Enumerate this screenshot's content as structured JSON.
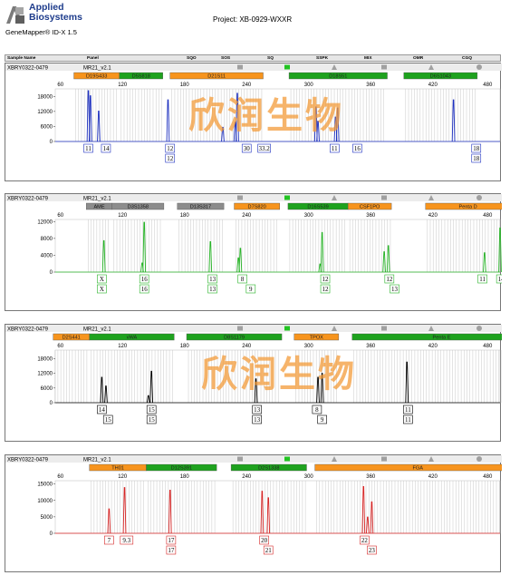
{
  "header": {
    "logo_line1": "Applied",
    "logo_line2": "Biosystems",
    "product": "GeneMapper® ID-X  1.5",
    "project": "Project: XB-0929-WXXR"
  },
  "columns": [
    "Sample Name",
    "Panel",
    "SQO",
    "SOS",
    "SQ",
    "SSPK",
    "MIX",
    "OMR",
    "CGQ"
  ],
  "watermark": "欣润生物",
  "colors": {
    "blue": "#1c2fbf",
    "green": "#27b327",
    "black": "#000000",
    "red": "#d62525",
    "marker_orange": "#f7941d",
    "marker_green": "#1ea21e",
    "marker_gray": "#8c8c8c"
  },
  "panels": [
    {
      "sample": "XBRY0322-0479",
      "panel": "MR21_v2.1",
      "color": "#1c2fbf",
      "x_ticks": [
        60,
        120,
        180,
        240,
        300,
        360,
        420,
        480
      ],
      "y_ticks": [
        18000,
        12000,
        6000,
        0
      ],
      "y_max": 21000,
      "markers": [
        {
          "name": "D19S433",
          "x0": 73,
          "x1": 117,
          "c": "o"
        },
        {
          "name": "D5S818",
          "x0": 117,
          "x1": 159,
          "c": "g"
        },
        {
          "name": "D21S11",
          "x0": 166,
          "x1": 256,
          "c": "o"
        },
        {
          "name": "D18S51",
          "x0": 281,
          "x1": 376,
          "c": "g"
        },
        {
          "name": "D6S1043",
          "x0": 392,
          "x1": 463,
          "c": "g"
        }
      ],
      "peaks": [
        {
          "x": 87,
          "h": 1.0
        },
        {
          "x": 89,
          "h": 0.9
        },
        {
          "x": 97,
          "h": 0.6
        },
        {
          "x": 164,
          "h": 0.82
        },
        {
          "x": 217,
          "h": 0.28
        },
        {
          "x": 229,
          "h": 0.38
        },
        {
          "x": 231,
          "h": 0.95
        },
        {
          "x": 307,
          "h": 0.68
        },
        {
          "x": 309,
          "h": 0.4
        },
        {
          "x": 326,
          "h": 0.48
        },
        {
          "x": 328,
          "h": 0.66
        },
        {
          "x": 440,
          "h": 0.82
        }
      ],
      "labels": [
        {
          "row": [
            {
              "x": 87,
              "t": "11"
            },
            {
              "x": 104,
              "t": "14"
            },
            {
              "x": 166,
              "t": "12"
            },
            {
              "x": 240,
              "t": "30"
            },
            {
              "x": 257,
              "t": "33.2"
            },
            {
              "x": 325,
              "t": "11"
            },
            {
              "x": 347,
              "t": "16"
            },
            {
              "x": 462,
              "t": "18"
            }
          ]
        },
        {
          "row": [
            {
              "x": 166,
              "t": "12"
            },
            {
              "x": 462,
              "t": "18"
            }
          ]
        }
      ]
    },
    {
      "sample": "XBRY0322-0479",
      "panel": "MR21_v2.1",
      "color": "#27b327",
      "x_ticks": [
        60,
        120,
        180,
        240,
        300,
        360,
        420,
        480
      ],
      "y_ticks": [
        12000,
        8000,
        4000,
        0
      ],
      "y_max": 12500,
      "markers": [
        {
          "name": "AME",
          "x0": 85,
          "x1": 110,
          "c": "y"
        },
        {
          "name": "D3S1358",
          "x0": 110,
          "x1": 160,
          "c": "y"
        },
        {
          "name": "D13S317",
          "x0": 173,
          "x1": 218,
          "c": "y"
        },
        {
          "name": "D7S820",
          "x0": 228,
          "x1": 272,
          "c": "o"
        },
        {
          "name": "D16S539",
          "x0": 280,
          "x1": 338,
          "c": "g"
        },
        {
          "name": "CSF1PO",
          "x0": 338,
          "x1": 380,
          "c": "o"
        },
        {
          "name": "Penta D",
          "x0": 413,
          "x1": 495,
          "c": "o"
        }
      ],
      "peaks": [
        {
          "x": 102,
          "h": 0.62
        },
        {
          "x": 139,
          "h": 0.18
        },
        {
          "x": 141,
          "h": 0.98
        },
        {
          "x": 205,
          "h": 0.6
        },
        {
          "x": 232,
          "h": 0.28
        },
        {
          "x": 234,
          "h": 0.47
        },
        {
          "x": 311,
          "h": 0.16
        },
        {
          "x": 313,
          "h": 0.78
        },
        {
          "x": 373,
          "h": 0.4
        },
        {
          "x": 377,
          "h": 0.52
        },
        {
          "x": 470,
          "h": 0.38
        },
        {
          "x": 485,
          "h": 0.87
        }
      ],
      "labels": [
        {
          "row": [
            {
              "x": 100,
              "t": "X"
            },
            {
              "x": 141,
              "t": "16"
            },
            {
              "x": 207,
              "t": "13"
            },
            {
              "x": 236,
              "t": "8"
            },
            {
              "x": 316,
              "t": "12"
            },
            {
              "x": 378,
              "t": "12"
            },
            {
              "x": 468,
              "t": "11"
            },
            {
              "x": 486,
              "t": "14"
            }
          ]
        },
        {
          "row": [
            {
              "x": 100,
              "t": "X"
            },
            {
              "x": 141,
              "t": "16"
            },
            {
              "x": 207,
              "t": "13"
            },
            {
              "x": 244,
              "t": "9"
            },
            {
              "x": 316,
              "t": "12"
            },
            {
              "x": 383,
              "t": "13"
            }
          ]
        }
      ]
    },
    {
      "sample": "XBRY0322-0479",
      "panel": "MR21_v2.1",
      "color": "#000000",
      "x_ticks": [
        60,
        120,
        180,
        240,
        300,
        360,
        420,
        480
      ],
      "y_ticks": [
        18000,
        12000,
        6000,
        0
      ],
      "y_max": 21500,
      "markers": [
        {
          "name": "D2S441",
          "x0": 53,
          "x1": 88,
          "c": "o"
        },
        {
          "name": "vWA",
          "x0": 88,
          "x1": 170,
          "c": "g"
        },
        {
          "name": "D8S1179",
          "x0": 182,
          "x1": 274,
          "c": "g"
        },
        {
          "name": "TPOX",
          "x0": 286,
          "x1": 329,
          "c": "o"
        },
        {
          "name": "Penta E",
          "x0": 342,
          "x1": 515,
          "c": "g"
        }
      ],
      "peaks": [
        {
          "x": 100,
          "h": 0.5
        },
        {
          "x": 104,
          "h": 0.33
        },
        {
          "x": 145,
          "h": 0.14
        },
        {
          "x": 148,
          "h": 0.62
        },
        {
          "x": 249,
          "h": 0.47
        },
        {
          "x": 309,
          "h": 0.5
        },
        {
          "x": 313,
          "h": 0.58
        },
        {
          "x": 395,
          "h": 0.8
        }
      ],
      "labels": [
        {
          "row": [
            {
              "x": 100,
              "t": "14"
            },
            {
              "x": 148,
              "t": "15"
            },
            {
              "x": 250,
              "t": "13"
            },
            {
              "x": 308,
              "t": "8"
            },
            {
              "x": 396,
              "t": "11"
            }
          ]
        },
        {
          "row": [
            {
              "x": 106,
              "t": "15"
            },
            {
              "x": 148,
              "t": "15"
            },
            {
              "x": 250,
              "t": "13"
            },
            {
              "x": 313,
              "t": "9"
            },
            {
              "x": 396,
              "t": "11"
            }
          ]
        }
      ]
    },
    {
      "sample": "XBRY0322-0479",
      "panel": "MR21_v2.1",
      "color": "#d62525",
      "x_ticks": [
        60,
        120,
        180,
        240,
        300,
        360,
        420,
        480
      ],
      "y_ticks": [
        15000,
        10000,
        5000,
        0
      ],
      "y_max": 16000,
      "markers": [
        {
          "name": "TH01",
          "x0": 88,
          "x1": 143,
          "c": "o"
        },
        {
          "name": "D12S391",
          "x0": 143,
          "x1": 211,
          "c": "g"
        },
        {
          "name": "D2S1338",
          "x0": 225,
          "x1": 298,
          "c": "g"
        },
        {
          "name": "FGA",
          "x0": 306,
          "x1": 505,
          "c": "o"
        }
      ],
      "peaks": [
        {
          "x": 107,
          "h": 0.48
        },
        {
          "x": 122,
          "h": 0.9
        },
        {
          "x": 166,
          "h": 0.85
        },
        {
          "x": 255,
          "h": 0.83
        },
        {
          "x": 261,
          "h": 0.7
        },
        {
          "x": 353,
          "h": 0.92
        },
        {
          "x": 357,
          "h": 0.32
        },
        {
          "x": 361,
          "h": 0.62
        }
      ],
      "labels": [
        {
          "row": [
            {
              "x": 107,
              "t": "7"
            },
            {
              "x": 124,
              "t": "9.3"
            },
            {
              "x": 167,
              "t": "17"
            },
            {
              "x": 257,
              "t": "20"
            },
            {
              "x": 354,
              "t": "22"
            }
          ]
        },
        {
          "row": [
            {
              "x": 167,
              "t": "17"
            },
            {
              "x": 261,
              "t": "21"
            },
            {
              "x": 361,
              "t": "23"
            }
          ]
        }
      ]
    }
  ]
}
